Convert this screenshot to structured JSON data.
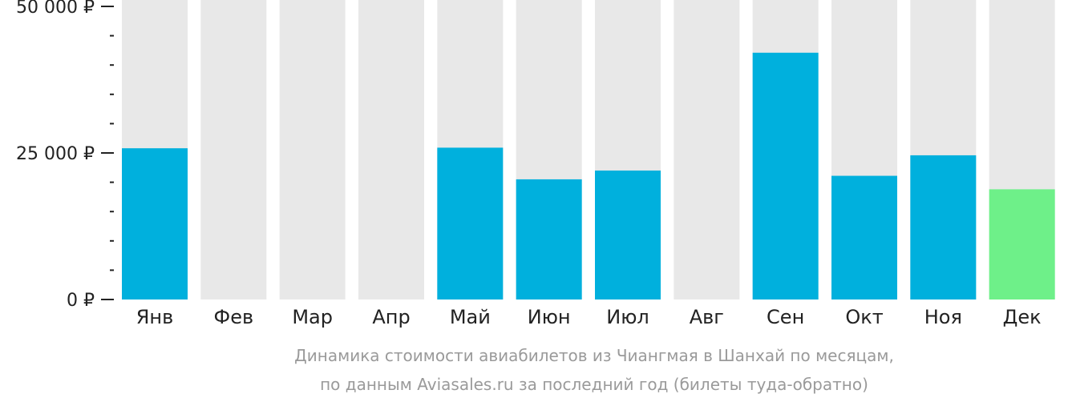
{
  "chart_data": {
    "type": "bar",
    "categories": [
      "Янв",
      "Фев",
      "Мар",
      "Апр",
      "Май",
      "Июн",
      "Июл",
      "Авг",
      "Сен",
      "Окт",
      "Ноя",
      "Дек"
    ],
    "values": [
      25800,
      null,
      null,
      null,
      25900,
      20500,
      22000,
      null,
      42100,
      21100,
      24600,
      18800
    ],
    "ylim": [
      0,
      50000
    ],
    "y_ticks": [
      {
        "value": 0,
        "label": "0 ₽"
      },
      {
        "value": 25000,
        "label": "25 000 ₽"
      },
      {
        "value": 50000,
        "label": "50 000 ₽"
      }
    ],
    "minor_tick_step": 5000,
    "highlight_index": 11,
    "grid": false,
    "legend": "none",
    "colors": {
      "bar": "#00b0dd",
      "highlight": "#6ef089",
      "background_bar": "#e8e8e8"
    }
  },
  "caption": {
    "line1": "Динамика стоимости авиабилетов из Чиангмая в Шанхай по месяцам,",
    "line2": "по данным Aviasales.ru за последний год (билеты туда-обратно)"
  }
}
